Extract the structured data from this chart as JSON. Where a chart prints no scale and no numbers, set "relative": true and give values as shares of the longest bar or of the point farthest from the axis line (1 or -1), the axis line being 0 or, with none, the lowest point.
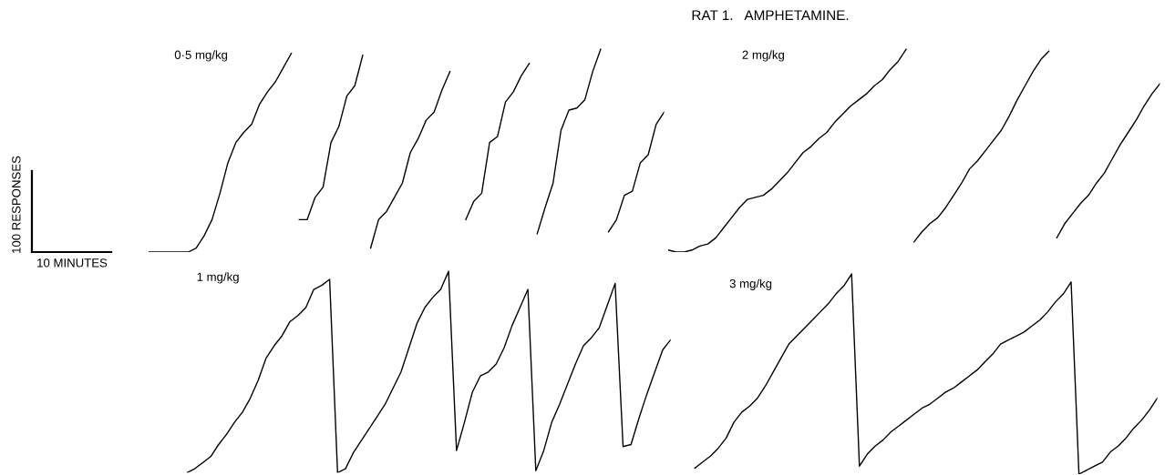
{
  "chart_data": [
    {
      "type": "line",
      "title": "0·5 mg/kg",
      "relative": true,
      "tick_labels": false,
      "annotations": [
        "RAT 1.   AMPHETAMINE.",
        "100 RESPONSES",
        "10 MINUTES"
      ],
      "categories": [
        null,
        null,
        null,
        null,
        null,
        null,
        null,
        null,
        null,
        null,
        null,
        null,
        null,
        null,
        null,
        null,
        null,
        null,
        null,
        null,
        null,
        null,
        null,
        null,
        null,
        null,
        null,
        null,
        null,
        null,
        null,
        null,
        null,
        null,
        null,
        null,
        null,
        null,
        null,
        null,
        null,
        null,
        null,
        null,
        null,
        null,
        null,
        null,
        null,
        null,
        null,
        null,
        null,
        null,
        null,
        null,
        null,
        null,
        null,
        null,
        null,
        null,
        null,
        null,
        null,
        null
      ],
      "series": [
        {
          "color": "#000000",
          "values": [
            0,
            0,
            0,
            0,
            0,
            0,
            0.02,
            0.08,
            0.16,
            0.29,
            0.44,
            0.54,
            0.59,
            0.63,
            0.73,
            0.79,
            0.84,
            0.91,
            0.98,
            null,
            null,
            null,
            null,
            null,
            null,
            null,
            null,
            null,
            null,
            null,
            null,
            null,
            null,
            null,
            null,
            null,
            null,
            null,
            null,
            null,
            null,
            null,
            null,
            null,
            null,
            null,
            null,
            null,
            null,
            null,
            null,
            null,
            null,
            null,
            null,
            null,
            null,
            null,
            null,
            null,
            null,
            null,
            null,
            null,
            null,
            null
          ]
        },
        {
          "color": "#000000",
          "values": [
            null,
            null,
            null,
            null,
            null,
            null,
            null,
            null,
            null,
            null,
            null,
            null,
            null,
            null,
            null,
            null,
            null,
            null,
            null,
            0.16,
            0.16,
            0.27,
            0.32,
            0.54,
            0.62,
            0.77,
            0.82,
            0.97,
            null,
            null,
            null,
            null,
            null,
            null,
            null,
            null,
            null,
            null,
            null,
            null,
            null,
            null,
            null,
            null,
            null,
            null,
            null,
            null,
            null,
            null,
            null,
            null,
            null,
            null,
            null,
            null,
            null,
            null,
            null,
            null,
            null,
            null,
            null,
            null,
            null,
            null
          ]
        },
        {
          "color": "#000000",
          "values": [
            null,
            null,
            null,
            null,
            null,
            null,
            null,
            null,
            null,
            null,
            null,
            null,
            null,
            null,
            null,
            null,
            null,
            null,
            null,
            null,
            null,
            null,
            null,
            null,
            null,
            null,
            null,
            null,
            0.02,
            0.16,
            0.2,
            0.27,
            0.34,
            0.49,
            0.56,
            0.65,
            0.69,
            0.8,
            0.89,
            null,
            null,
            null,
            null,
            null,
            null,
            null,
            null,
            null,
            null,
            null,
            null,
            null,
            null,
            null,
            null,
            null,
            null,
            null,
            null,
            null,
            null,
            null,
            null,
            null,
            null,
            null
          ]
        },
        {
          "color": "#000000",
          "values": [
            null,
            null,
            null,
            null,
            null,
            null,
            null,
            null,
            null,
            null,
            null,
            null,
            null,
            null,
            null,
            null,
            null,
            null,
            null,
            null,
            null,
            null,
            null,
            null,
            null,
            null,
            null,
            null,
            null,
            null,
            null,
            null,
            null,
            null,
            null,
            null,
            null,
            null,
            null,
            null,
            0.16,
            0.25,
            0.29,
            0.54,
            0.57,
            0.74,
            0.79,
            0.87,
            0.93,
            null,
            null,
            null,
            null,
            null,
            null,
            null,
            null,
            null,
            null,
            null,
            null,
            null,
            null,
            null,
            null,
            null
          ]
        },
        {
          "color": "#000000",
          "values": [
            null,
            null,
            null,
            null,
            null,
            null,
            null,
            null,
            null,
            null,
            null,
            null,
            null,
            null,
            null,
            null,
            null,
            null,
            null,
            null,
            null,
            null,
            null,
            null,
            null,
            null,
            null,
            null,
            null,
            null,
            null,
            null,
            null,
            null,
            null,
            null,
            null,
            null,
            null,
            null,
            null,
            null,
            null,
            null,
            null,
            null,
            null,
            null,
            null,
            0.09,
            0.22,
            0.34,
            0.6,
            0.7,
            0.71,
            0.75,
            0.89,
            1.0,
            null,
            null,
            null,
            null,
            null,
            null,
            null,
            null
          ]
        },
        {
          "color": "#000000",
          "values": [
            null,
            null,
            null,
            null,
            null,
            null,
            null,
            null,
            null,
            null,
            null,
            null,
            null,
            null,
            null,
            null,
            null,
            null,
            null,
            null,
            null,
            null,
            null,
            null,
            null,
            null,
            null,
            null,
            null,
            null,
            null,
            null,
            null,
            null,
            null,
            null,
            null,
            null,
            null,
            null,
            null,
            null,
            null,
            null,
            null,
            null,
            null,
            null,
            null,
            null,
            null,
            null,
            null,
            null,
            null,
            null,
            null,
            null,
            0.1,
            0.16,
            0.28,
            0.3,
            0.44,
            0.48,
            0.63,
            0.69
          ]
        }
      ]
    },
    {
      "type": "line",
      "title": "2 mg/kg",
      "relative": true,
      "tick_labels": false,
      "categories": [
        null,
        null,
        null,
        null,
        null,
        null,
        null,
        null,
        null,
        null,
        null,
        null,
        null,
        null,
        null,
        null,
        null,
        null,
        null,
        null,
        null,
        null,
        null,
        null,
        null,
        null,
        null,
        null,
        null,
        null,
        null,
        null,
        null,
        null,
        null,
        null,
        null,
        null,
        null,
        null,
        null,
        null,
        null,
        null,
        null,
        null,
        null,
        null,
        null,
        null,
        null,
        null,
        null,
        null,
        null,
        null,
        null,
        null,
        null,
        null,
        null,
        null,
        null
      ],
      "series": [
        {
          "color": "#000000",
          "values": [
            0.01,
            0,
            0,
            0.01,
            0.03,
            0.04,
            0.07,
            0.12,
            0.17,
            0.22,
            0.26,
            0.27,
            0.28,
            0.31,
            0.35,
            0.39,
            0.44,
            0.49,
            0.52,
            0.56,
            0.59,
            0.64,
            0.68,
            0.72,
            0.75,
            0.78,
            0.82,
            0.85,
            0.9,
            0.94,
            1.0,
            null,
            null,
            null,
            null,
            null,
            null,
            null,
            null,
            null,
            null,
            null,
            null,
            null,
            null,
            null,
            null,
            null,
            null,
            null,
            null,
            null,
            null,
            null,
            null,
            null,
            null,
            null,
            null,
            null,
            null,
            null,
            null
          ]
        },
        {
          "color": "#000000",
          "values": [
            null,
            null,
            null,
            null,
            null,
            null,
            null,
            null,
            null,
            null,
            null,
            null,
            null,
            null,
            null,
            null,
            null,
            null,
            null,
            null,
            null,
            null,
            null,
            null,
            null,
            null,
            null,
            null,
            null,
            null,
            null,
            0.05,
            0.1,
            0.14,
            0.17,
            0.22,
            0.28,
            0.34,
            0.41,
            0.45,
            0.5,
            0.55,
            0.6,
            0.67,
            0.75,
            0.82,
            0.89,
            0.95,
            0.99,
            null,
            null,
            null,
            null,
            null,
            null,
            null,
            null,
            null,
            null,
            null,
            null,
            null,
            null
          ]
        },
        {
          "color": "#000000",
          "values": [
            null,
            null,
            null,
            null,
            null,
            null,
            null,
            null,
            null,
            null,
            null,
            null,
            null,
            null,
            null,
            null,
            null,
            null,
            null,
            null,
            null,
            null,
            null,
            null,
            null,
            null,
            null,
            null,
            null,
            null,
            null,
            null,
            null,
            null,
            null,
            null,
            null,
            null,
            null,
            null,
            null,
            null,
            null,
            null,
            null,
            null,
            null,
            null,
            null,
            0.07,
            0.14,
            0.19,
            0.24,
            0.28,
            0.34,
            0.39,
            0.46,
            0.53,
            0.59,
            0.65,
            0.72,
            0.78,
            0.83
          ]
        }
      ]
    },
    {
      "type": "line",
      "title": "1 mg/kg",
      "relative": true,
      "tick_labels": false,
      "categories": [
        null,
        null,
        null,
        null,
        null,
        null,
        null,
        null,
        null,
        null,
        null,
        null,
        null,
        null,
        null,
        null,
        null,
        null,
        null,
        null,
        null,
        null,
        null,
        null,
        null,
        null,
        null,
        null,
        null,
        null,
        null,
        null,
        null,
        null,
        null,
        null,
        null,
        null,
        null,
        null,
        null,
        null,
        null,
        null,
        null,
        null,
        null,
        null,
        null,
        null,
        null,
        null,
        null,
        null,
        null,
        null,
        null,
        null,
        null,
        null,
        null,
        null
      ],
      "series": [
        {
          "color": "#000000",
          "values": [
            0,
            0.02,
            0.05,
            0.08,
            0.14,
            0.19,
            0.25,
            0.3,
            0.37,
            0.46,
            0.57,
            0.63,
            0.68,
            0.75,
            0.78,
            0.82,
            0.91,
            0.93,
            0.96,
            0,
            0.02,
            0.1,
            0.16,
            0.22,
            0.28,
            0.34,
            0.42,
            0.5,
            0.62,
            0.74,
            0.82,
            0.87,
            0.91,
            1.0,
            0.11,
            0.25,
            0.4,
            0.48,
            0.5,
            0.54,
            0.62,
            0.73,
            0.82,
            0.91,
            0.01,
            0.11,
            0.25,
            0.34,
            0.44,
            0.54,
            0.63,
            0.67,
            0.72,
            0.83,
            0.94,
            0.13,
            0.14,
            0.27,
            0.39,
            0.5,
            0.61,
            0.66
          ]
        }
      ]
    },
    {
      "type": "line",
      "title": "3 mg/kg",
      "relative": true,
      "tick_labels": false,
      "categories": [
        null,
        null,
        null,
        null,
        null,
        null,
        null,
        null,
        null,
        null,
        null,
        null,
        null,
        null,
        null,
        null,
        null,
        null,
        null,
        null,
        null,
        null,
        null,
        null,
        null,
        null,
        null,
        null,
        null,
        null,
        null,
        null,
        null,
        null,
        null,
        null,
        null,
        null,
        null,
        null,
        null,
        null,
        null,
        null,
        null,
        null,
        null,
        null,
        null,
        null,
        null,
        null,
        null,
        null,
        null,
        null,
        null,
        null,
        null,
        null,
        null,
        null
      ],
      "series": [
        {
          "color": "#000000",
          "values": [
            null,
            null,
            0.03,
            0.06,
            0.09,
            0.13,
            0.18,
            0.26,
            0.31,
            0.34,
            0.38,
            0.44,
            0.51,
            0.58,
            0.65,
            0.69,
            0.73,
            0.77,
            0.81,
            0.85,
            0.9,
            0.94,
            1.0,
            0.04,
            0.1,
            0.14,
            0.17,
            0.21,
            0.24,
            0.27,
            0.3,
            0.33,
            0.35,
            0.38,
            0.41,
            0.43,
            0.46,
            0.49,
            0.52,
            0.56,
            0.6,
            0.65,
            0.67,
            0.69,
            0.71,
            0.74,
            0.77,
            0.81,
            0.86,
            0.9,
            0.96,
            0,
            0.02,
            0.04,
            0.06,
            0.11,
            0.14,
            0.18,
            0.23,
            0.27,
            0.32,
            0.38
          ]
        }
      ]
    }
  ]
}
